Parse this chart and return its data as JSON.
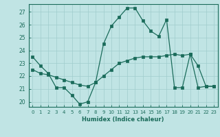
{
  "x_wave": [
    0,
    1,
    2,
    3,
    4,
    5,
    6,
    7,
    8,
    9,
    10,
    11,
    12,
    13,
    14,
    15,
    16,
    17,
    18,
    19,
    20,
    21,
    22,
    23
  ],
  "y_wave": [
    23.5,
    22.8,
    22.2,
    21.1,
    21.1,
    20.5,
    19.8,
    20.0,
    21.5,
    24.5,
    25.9,
    26.6,
    27.3,
    27.3,
    26.3,
    25.5,
    25.1,
    26.4,
    21.1,
    21.1,
    23.7,
    22.8,
    21.2,
    21.2
  ],
  "x_smooth": [
    0,
    1,
    2,
    3,
    4,
    5,
    6,
    7,
    8,
    9,
    10,
    11,
    12,
    13,
    14,
    15,
    16,
    17,
    18,
    19,
    20,
    21,
    22,
    23
  ],
  "y_smooth": [
    22.5,
    22.2,
    22.1,
    21.9,
    21.7,
    21.5,
    21.3,
    21.2,
    21.5,
    22.0,
    22.5,
    23.0,
    23.2,
    23.4,
    23.5,
    23.5,
    23.5,
    23.6,
    23.7,
    23.6,
    23.7,
    21.1,
    21.2,
    21.2
  ],
  "yticks": [
    20,
    21,
    22,
    23,
    24,
    25,
    26,
    27
  ],
  "xticks": [
    0,
    1,
    2,
    3,
    4,
    5,
    6,
    7,
    8,
    9,
    10,
    11,
    12,
    13,
    14,
    15,
    16,
    17,
    18,
    19,
    20,
    21,
    22,
    23
  ],
  "xlabel": "Humidex (Indice chaleur)",
  "line_color": "#1a6b5a",
  "bg_color": "#c0e4e4",
  "grid_color": "#a0cccc"
}
